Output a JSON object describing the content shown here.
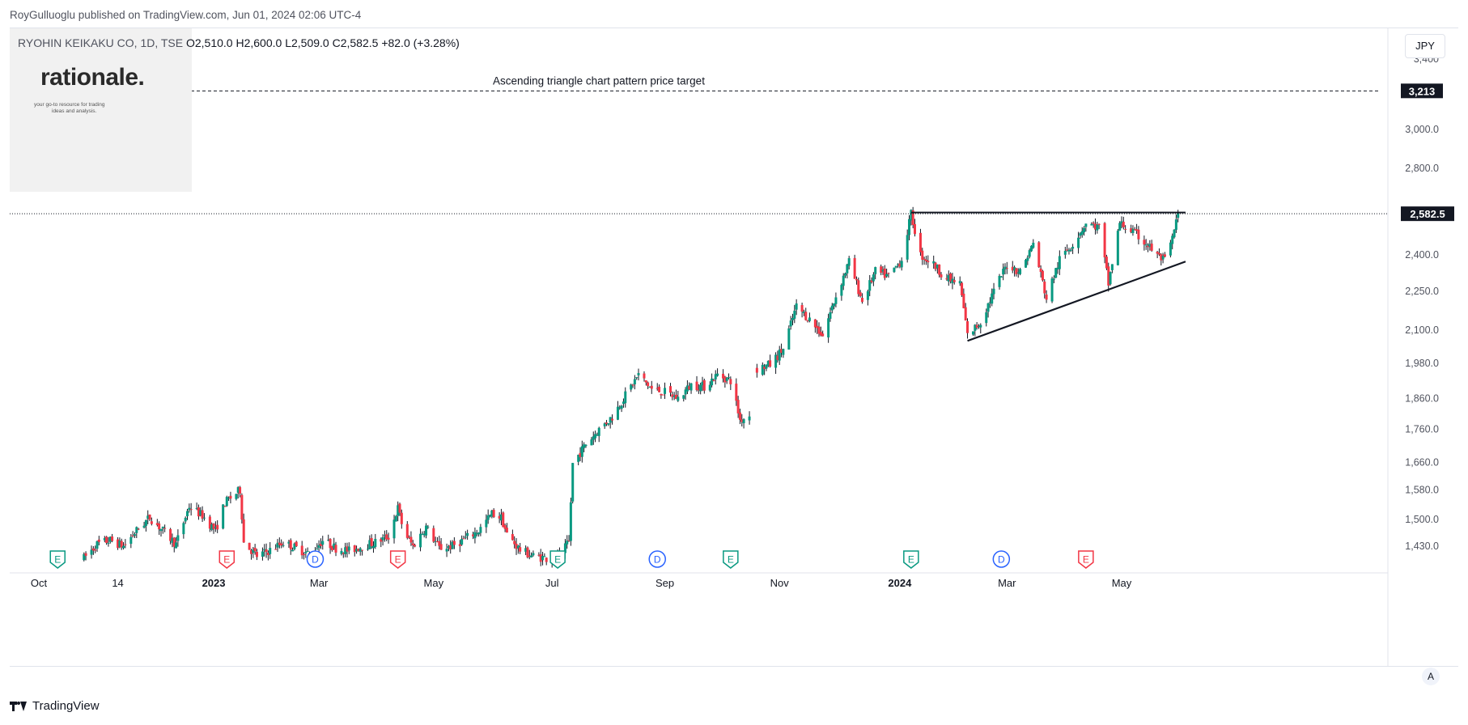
{
  "header": {
    "publish_line": "RoyGulluoglu published on TradingView.com, Jun 01, 2024 02:06 UTC-4"
  },
  "logo": {
    "text": "rationale.",
    "tagline_1": "your go-to resource for trading",
    "tagline_2": "ideas and analysis."
  },
  "legend": {
    "symbol": "RYOHIN KEIKAKU CO, 1D, TSE",
    "open": "O2,510.0",
    "high": "H2,600.0",
    "low": "L2,509.0",
    "close": "C2,582.5",
    "change": "+82.0 (+3.28%)"
  },
  "currency_button": "JPY",
  "auto_scale_button": "A",
  "footer": {
    "brand": "TradingView"
  },
  "colors": {
    "up": "#089981",
    "down": "#f23645",
    "dividend": "#2962ff",
    "text": "#131722",
    "axis_text": "#50535e"
  },
  "chart_data": {
    "type": "candlestick",
    "title": "RYOHIN KEIKAKU CO, 1D, TSE",
    "currency": "JPY",
    "y_scale": "log",
    "ylim": [
      1400,
      3550
    ],
    "xlim": [
      "2022-10-01",
      "2024-06-30"
    ],
    "y_ticks": [
      3400,
      3000,
      2800,
      2400,
      2250,
      2100,
      1980,
      1860,
      1760,
      1660,
      1580,
      1500,
      1430
    ],
    "y_tick_labels": [
      "3,400",
      "3,000.0",
      "2,800.0",
      "2,400.0",
      "2,250.0",
      "2,100.0",
      "1,980.0",
      "1,860.0",
      "1,760.0",
      "1,660.0",
      "1,580.0",
      "1,500.0",
      "1,430.0"
    ],
    "x_ticks": [
      {
        "date": "2022-10-03",
        "label": "Oct",
        "bold": false
      },
      {
        "date": "2022-11-14",
        "label": "14",
        "bold": false
      },
      {
        "date": "2023-01-04",
        "label": "2023",
        "bold": true
      },
      {
        "date": "2023-03-01",
        "label": "Mar",
        "bold": false
      },
      {
        "date": "2023-05-01",
        "label": "May",
        "bold": false
      },
      {
        "date": "2023-07-03",
        "label": "Jul",
        "bold": false
      },
      {
        "date": "2023-09-01",
        "label": "Sep",
        "bold": false
      },
      {
        "date": "2023-11-01",
        "label": "Nov",
        "bold": false
      },
      {
        "date": "2024-01-04",
        "label": "2024",
        "bold": true
      },
      {
        "date": "2024-03-01",
        "label": "Mar",
        "bold": false
      },
      {
        "date": "2024-05-01",
        "label": "May",
        "bold": false
      }
    ],
    "ohlc_points": [
      [
        "2022-10-27",
        1400
      ],
      [
        "2022-11-03",
        1435
      ],
      [
        "2022-11-10",
        1445
      ],
      [
        "2022-11-17",
        1430
      ],
      [
        "2022-11-24",
        1470
      ],
      [
        "2022-12-01",
        1505
      ],
      [
        "2022-12-08",
        1470
      ],
      [
        "2022-12-15",
        1435
      ],
      [
        "2022-12-22",
        1535
      ],
      [
        "2022-12-29",
        1510
      ],
      [
        "2023-01-05",
        1470
      ],
      [
        "2023-01-10",
        1545
      ],
      [
        "2023-01-18",
        1580
      ],
      [
        "2023-01-20",
        1440
      ],
      [
        "2023-01-27",
        1405
      ],
      [
        "2023-02-03",
        1420
      ],
      [
        "2023-02-10",
        1440
      ],
      [
        "2023-02-17",
        1425
      ],
      [
        "2023-02-24",
        1410
      ],
      [
        "2023-03-03",
        1445
      ],
      [
        "2023-03-10",
        1425
      ],
      [
        "2023-03-17",
        1418
      ],
      [
        "2023-03-24",
        1430
      ],
      [
        "2023-03-31",
        1440
      ],
      [
        "2023-04-07",
        1455
      ],
      [
        "2023-04-12",
        1530
      ],
      [
        "2023-04-15",
        1470
      ],
      [
        "2023-04-20",
        1430
      ],
      [
        "2023-04-27",
        1480
      ],
      [
        "2023-05-04",
        1425
      ],
      [
        "2023-05-11",
        1430
      ],
      [
        "2023-05-18",
        1450
      ],
      [
        "2023-05-25",
        1470
      ],
      [
        "2023-06-01",
        1515
      ],
      [
        "2023-06-06",
        1505
      ],
      [
        "2023-06-09",
        1460
      ],
      [
        "2023-06-16",
        1420
      ],
      [
        "2023-06-23",
        1405
      ],
      [
        "2023-06-30",
        1400
      ],
      [
        "2023-07-07",
        1405
      ],
      [
        "2023-07-12",
        1440
      ],
      [
        "2023-07-14",
        1655
      ],
      [
        "2023-07-21",
        1715
      ],
      [
        "2023-07-28",
        1760
      ],
      [
        "2023-08-04",
        1800
      ],
      [
        "2023-08-11",
        1870
      ],
      [
        "2023-08-18",
        1940
      ],
      [
        "2023-08-25",
        1890
      ],
      [
        "2023-09-01",
        1880
      ],
      [
        "2023-09-08",
        1860
      ],
      [
        "2023-09-15",
        1905
      ],
      [
        "2023-09-22",
        1900
      ],
      [
        "2023-09-29",
        1940
      ],
      [
        "2023-10-06",
        1920
      ],
      [
        "2023-10-11",
        1790
      ],
      [
        "2023-10-16",
        1805
      ]
    ],
    "ohlc_points_gap_note": "",
    "ohlc_points_2": [
      [
        "2023-10-20",
        1960
      ],
      [
        "2023-10-27",
        1975
      ],
      [
        "2023-11-03",
        2030
      ],
      [
        "2023-11-10",
        2190
      ],
      [
        "2023-11-17",
        2140
      ],
      [
        "2023-11-24",
        2080
      ],
      [
        "2023-12-01",
        2230
      ],
      [
        "2023-12-08",
        2370
      ],
      [
        "2023-12-15",
        2210
      ],
      [
        "2023-12-22",
        2330
      ],
      [
        "2023-12-29",
        2310
      ],
      [
        "2024-01-05",
        2380
      ],
      [
        "2024-01-10",
        2580
      ],
      [
        "2024-01-15",
        2400
      ],
      [
        "2024-01-22",
        2360
      ],
      [
        "2024-01-29",
        2300
      ],
      [
        "2024-02-05",
        2280
      ],
      [
        "2024-02-09",
        2080
      ],
      [
        "2024-02-16",
        2130
      ],
      [
        "2024-02-23",
        2250
      ],
      [
        "2024-03-01",
        2360
      ],
      [
        "2024-03-08",
        2330
      ],
      [
        "2024-03-15",
        2450
      ],
      [
        "2024-03-22",
        2220
      ],
      [
        "2024-03-29",
        2380
      ],
      [
        "2024-04-05",
        2450
      ],
      [
        "2024-04-12",
        2540
      ],
      [
        "2024-04-19",
        2520
      ],
      [
        "2024-04-24",
        2280
      ],
      [
        "2024-04-30",
        2540
      ],
      [
        "2024-05-07",
        2500
      ],
      [
        "2024-05-14",
        2450
      ],
      [
        "2024-05-21",
        2390
      ],
      [
        "2024-05-24",
        2375
      ],
      [
        "2024-05-28",
        2470
      ],
      [
        "2024-05-31",
        2582.5
      ]
    ],
    "last_price": {
      "value": 2582.5,
      "label": "2,582.5"
    },
    "annotations": [
      {
        "type": "horizontal_dashed",
        "value": 3213,
        "label": "3,213",
        "text": "Ascending triangle chart pattern price target"
      },
      {
        "type": "resistance_line",
        "start": "2024-01-10",
        "end": "2024-06-04",
        "value": 2588
      },
      {
        "type": "trend_line",
        "start": [
          "2024-02-09",
          2060
        ],
        "end": [
          "2024-06-04",
          2372
        ]
      }
    ],
    "events": [
      {
        "date": "2022-10-13",
        "kind": "E",
        "color": "#089981"
      },
      {
        "date": "2023-01-11",
        "kind": "E",
        "color": "#f23645"
      },
      {
        "date": "2023-02-27",
        "kind": "D",
        "color": "#2962ff"
      },
      {
        "date": "2023-04-12",
        "kind": "E",
        "color": "#f23645"
      },
      {
        "date": "2023-07-06",
        "kind": "E",
        "color": "#089981"
      },
      {
        "date": "2023-08-28",
        "kind": "D",
        "color": "#2962ff"
      },
      {
        "date": "2023-10-06",
        "kind": "E",
        "color": "#089981"
      },
      {
        "date": "2024-01-10",
        "kind": "E",
        "color": "#089981"
      },
      {
        "date": "2024-02-27",
        "kind": "D",
        "color": "#2962ff"
      },
      {
        "date": "2024-04-12",
        "kind": "E",
        "color": "#f23645"
      }
    ],
    "grid": false,
    "legend_position": "top-left"
  }
}
